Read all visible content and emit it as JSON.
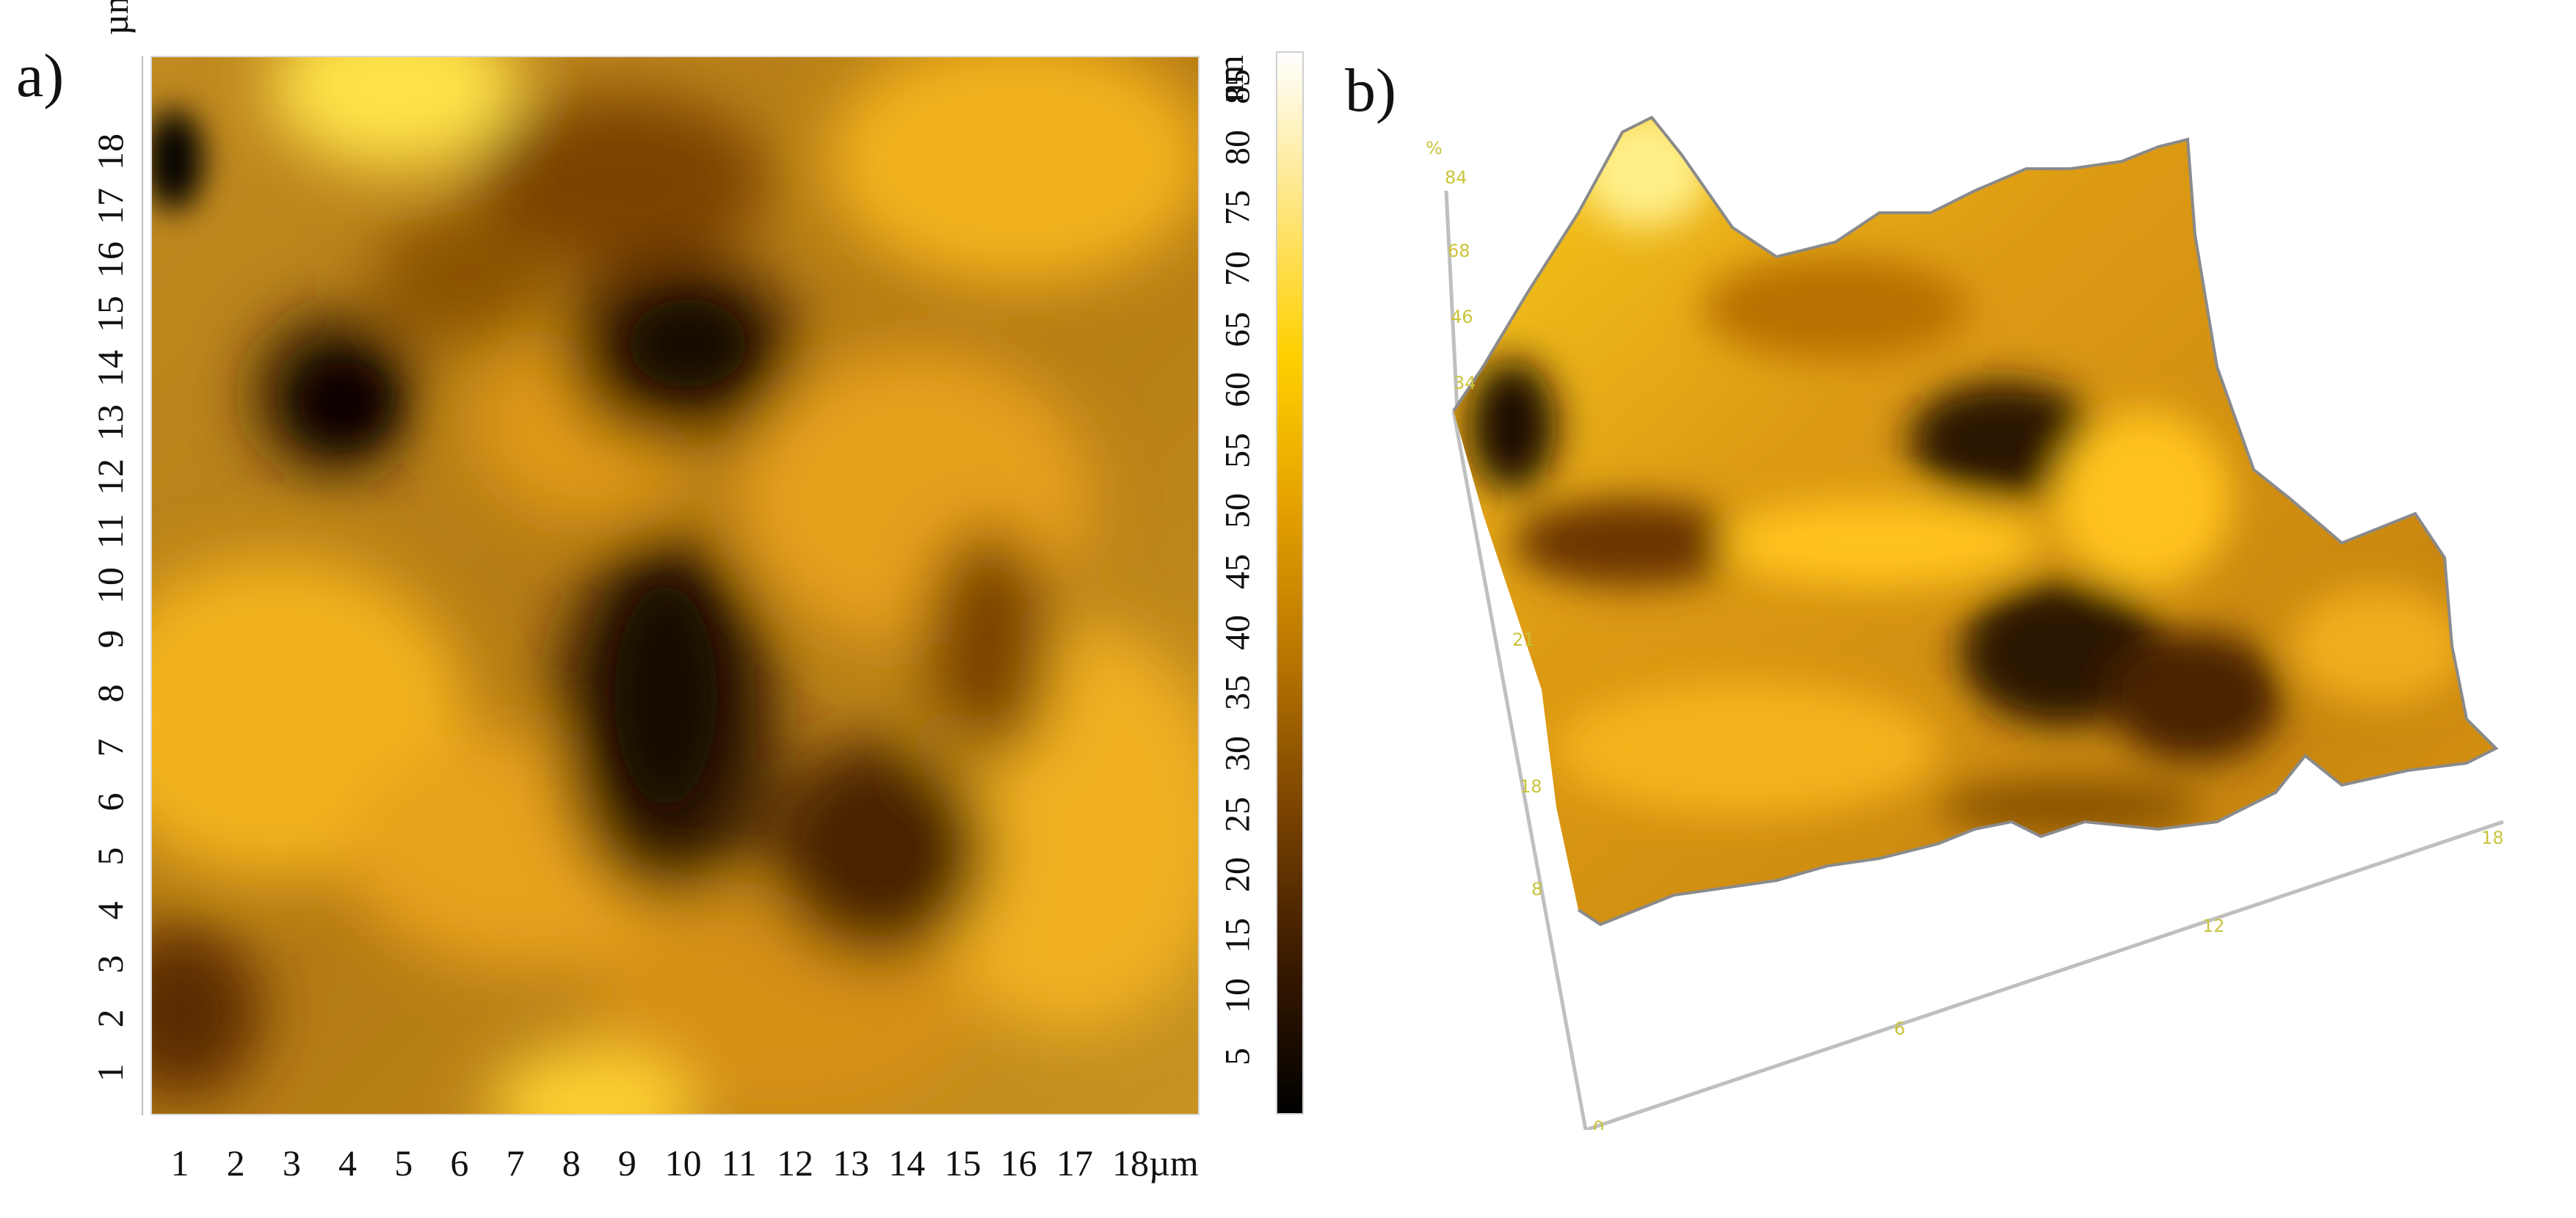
{
  "panels": {
    "a": {
      "label": "a)"
    },
    "b": {
      "label": "b)"
    }
  },
  "map2d": {
    "y_axis_unit": "µm",
    "x_axis_unit": "µm",
    "y_ticks": [
      "1",
      "2",
      "3",
      "4",
      "5",
      "6",
      "7",
      "8",
      "9",
      "10",
      "11",
      "12",
      "13",
      "14",
      "15",
      "16",
      "17",
      "18"
    ],
    "x_ticks": [
      "1",
      "2",
      "3",
      "4",
      "5",
      "6",
      "7",
      "8",
      "9",
      "10",
      "11",
      "12",
      "13",
      "14",
      "15",
      "16",
      "17",
      "18"
    ]
  },
  "colorbar": {
    "unit": "nm",
    "ticks": [
      "5",
      "10",
      "15",
      "20",
      "25",
      "30",
      "35",
      "40",
      "45",
      "50",
      "55",
      "60",
      "65",
      "70",
      "75",
      "80",
      "85"
    ],
    "colors": [
      "#000000",
      "#3a1a00",
      "#7a4300",
      "#b87500",
      "#e5a100",
      "#ffd000",
      "#ffe680",
      "#ffffff"
    ]
  },
  "surface3d": {
    "base_axis_ticks": [
      "0",
      "6",
      "12",
      "18"
    ],
    "height_axis_ticks": [
      "84",
      "68",
      "46",
      "34",
      "21",
      "18",
      "8"
    ],
    "z_axis_label": "%"
  }
}
